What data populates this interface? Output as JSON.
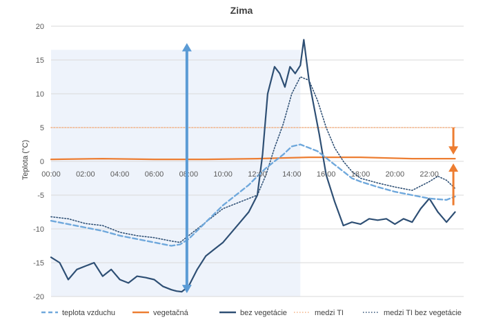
{
  "chart_data": {
    "type": "line",
    "title": "Zima",
    "xlabel": "",
    "ylabel": "Teplota (°C)",
    "ylim": [
      -20,
      20
    ],
    "yticks": [
      20,
      15,
      10,
      5,
      0,
      -5,
      -10,
      -15,
      -20
    ],
    "xlim": [
      0,
      24
    ],
    "xticks": [
      "00:00",
      "02:00",
      "04:00",
      "06:00",
      "08:00",
      "10:00",
      "12:00",
      "14:00",
      "16:00",
      "18:00",
      "20:00",
      "22:00"
    ],
    "x_tick_hours": [
      0,
      2,
      4,
      6,
      8,
      10,
      12,
      14,
      16,
      18,
      20,
      22
    ],
    "shaded_region_hours": [
      0,
      14.5
    ],
    "grid": true,
    "legend_position": "bottom",
    "series": [
      {
        "name": "teplota vzduchu",
        "color": "#6fa8dc",
        "dash": "dashed",
        "x": [
          0,
          1,
          2,
          3,
          4,
          5,
          6,
          7,
          7.5,
          8,
          9,
          10,
          11,
          11.5,
          12,
          12.5,
          13,
          13.5,
          14,
          14.5,
          15,
          15.5,
          16,
          16.5,
          17,
          17.5,
          18,
          19,
          20,
          21,
          22,
          23,
          23.5
        ],
        "y": [
          -8.8,
          -9.3,
          -9.8,
          -10.3,
          -11,
          -11.5,
          -12,
          -12.5,
          -12.3,
          -11.5,
          -9,
          -6.5,
          -4.5,
          -3.5,
          -2.2,
          -1,
          0,
          1,
          2.2,
          2.5,
          2,
          1.5,
          0.5,
          -0.5,
          -1.5,
          -2.5,
          -3,
          -3.8,
          -4.5,
          -5,
          -5.5,
          -5.7,
          -5.2
        ]
      },
      {
        "name": "vegetačná",
        "color": "#ed7d31",
        "dash": "solid",
        "x": [
          0,
          3,
          6,
          9,
          12,
          15,
          18,
          21,
          23.5
        ],
        "y": [
          0.3,
          0.4,
          0.3,
          0.3,
          0.4,
          0.6,
          0.6,
          0.4,
          0.4
        ]
      },
      {
        "name": "bez vegetácie",
        "color": "#2e4f74",
        "dash": "solid",
        "x": [
          0,
          0.5,
          1,
          1.5,
          2,
          2.5,
          3,
          3.5,
          4,
          4.5,
          5,
          5.5,
          6,
          6.5,
          7,
          7.3,
          7.6,
          8,
          8.5,
          9,
          9.5,
          10,
          10.5,
          11,
          11.5,
          12,
          12.3,
          12.6,
          13,
          13.3,
          13.6,
          13.9,
          14.2,
          14.5,
          14.7,
          15,
          15.3,
          15.6,
          16,
          16.5,
          17,
          17.5,
          18,
          18.5,
          19,
          19.5,
          20,
          20.5,
          21,
          21.5,
          22,
          22.5,
          23,
          23.5
        ],
        "y": [
          -14.2,
          -15,
          -17.5,
          -16,
          -15.5,
          -15,
          -17,
          -16,
          -17.5,
          -18,
          -17,
          -17.2,
          -17.5,
          -18.5,
          -19,
          -19.2,
          -19.3,
          -18.5,
          -16,
          -14,
          -13,
          -12,
          -10.5,
          -9,
          -7.5,
          -5,
          1,
          10,
          14,
          13,
          11,
          14,
          13,
          14.2,
          18,
          12,
          8,
          4,
          -2,
          -6,
          -9.5,
          -9,
          -9.3,
          -8.5,
          -8.7,
          -8.5,
          -9.3,
          -8.5,
          -9,
          -7,
          -5.5,
          -7.5,
          -9,
          -7.5
        ]
      },
      {
        "name": "medzi TI",
        "color": "#f4b183",
        "dash": "dotted",
        "x": [
          0,
          6,
          12,
          18,
          23.5
        ],
        "y": [
          5,
          5,
          5,
          5,
          5
        ]
      },
      {
        "name": "medzi TI bez vegetácie",
        "color": "#2e4f74",
        "dash": "dotted",
        "x": [
          0,
          1,
          2,
          3,
          4,
          5,
          6,
          7,
          7.5,
          8,
          9,
          10,
          11,
          12,
          12.5,
          13,
          13.5,
          14,
          14.5,
          15,
          15.5,
          16,
          16.5,
          17,
          17.5,
          18,
          19,
          20,
          21,
          22,
          22.5,
          23,
          23.5
        ],
        "y": [
          -8.2,
          -8.5,
          -9.2,
          -9.5,
          -10.5,
          -11,
          -11.3,
          -11.8,
          -12,
          -11,
          -9,
          -7,
          -6,
          -5,
          -2,
          2,
          5.5,
          10,
          12.5,
          12,
          9,
          5,
          2,
          0,
          -1.5,
          -2.5,
          -3.2,
          -3.8,
          -4.3,
          -3,
          -2.2,
          -2.8,
          -4
        ]
      }
    ],
    "annotations": [
      {
        "type": "double-arrow",
        "color": "#5b9bd5",
        "x_hour": 7.9,
        "y_from": -19.5,
        "y_to": 17.5
      },
      {
        "type": "down-arrow",
        "color": "#ed7d31",
        "x_hour": 23.4,
        "y_from": 5,
        "y_to": 1
      },
      {
        "type": "up-arrow",
        "color": "#ed7d31",
        "x_hour": 23.4,
        "y_from": -6.5,
        "y_to": -0.3
      }
    ]
  }
}
